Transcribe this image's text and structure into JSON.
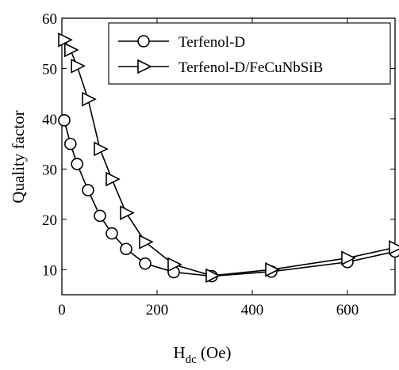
{
  "chart_data": {
    "type": "line",
    "xlabel_main": "H",
    "xlabel_sub": "dc",
    "xlabel_unit": " (Oe)",
    "ylabel": "Quality factor",
    "xlim": [
      0,
      700
    ],
    "ylim": [
      5,
      60
    ],
    "xticks": [
      0,
      200,
      400,
      600
    ],
    "yticks": [
      10,
      20,
      30,
      40,
      50,
      60
    ],
    "grid": false,
    "legend_position": "top-right",
    "series": [
      {
        "name": "Terfenol-D",
        "marker": "circle",
        "x": [
          5,
          18,
          32,
          55,
          80,
          105,
          135,
          175,
          235,
          315,
          440,
          600,
          700
        ],
        "y": [
          39.7,
          35,
          31,
          25.8,
          20.7,
          17.2,
          14.1,
          11.2,
          9.5,
          8.7,
          9.6,
          11.5,
          13.6
        ]
      },
      {
        "name": "Terfenol-D/FeCuNbSiB",
        "marker": "triangle-right",
        "x": [
          5,
          18,
          32,
          55,
          80,
          105,
          135,
          175,
          235,
          315,
          440,
          600,
          700
        ],
        "y": [
          55.7,
          53.7,
          50.5,
          43.9,
          34,
          28,
          21.3,
          15.5,
          11,
          8.8,
          10,
          12.3,
          14.4
        ]
      }
    ]
  }
}
